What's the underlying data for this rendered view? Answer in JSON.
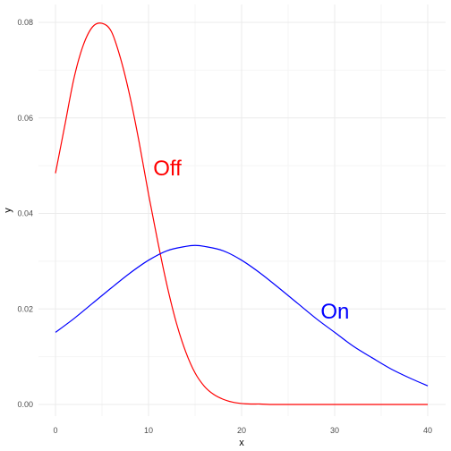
{
  "chart_data": {
    "type": "line",
    "title": "",
    "xlabel": "x",
    "ylabel": "y",
    "xlim": [
      0,
      40
    ],
    "ylim": [
      0,
      0.08
    ],
    "x_ticks": [
      {
        "value": 0,
        "label": "0"
      },
      {
        "value": 10,
        "label": "10"
      },
      {
        "value": 20,
        "label": "20"
      },
      {
        "value": 30,
        "label": "30"
      },
      {
        "value": 40,
        "label": "40"
      }
    ],
    "y_ticks": [
      {
        "value": 0,
        "label": "0.00"
      },
      {
        "value": 0.02,
        "label": "0.02"
      },
      {
        "value": 0.04,
        "label": "0.04"
      },
      {
        "value": 0.06,
        "label": "0.06"
      },
      {
        "value": 0.08,
        "label": "0.08"
      }
    ],
    "grid": true,
    "legend": "none",
    "series": [
      {
        "color": "#ff0000",
        "x": [
          0,
          1,
          2,
          3,
          4,
          5,
          6,
          7,
          8,
          9,
          10,
          11,
          12,
          13,
          14,
          15,
          16,
          17,
          18,
          19,
          20,
          21,
          22,
          23,
          24,
          25,
          26,
          27,
          28,
          29,
          30,
          31,
          32,
          33,
          34,
          35,
          36,
          37,
          38,
          39,
          40
        ],
        "y": [
          0.0484,
          0.0584,
          0.0684,
          0.0753,
          0.0791,
          0.0798,
          0.0781,
          0.0724,
          0.0645,
          0.0548,
          0.044,
          0.034,
          0.0248,
          0.017,
          0.011,
          0.0066,
          0.0038,
          0.0021,
          0.0011,
          0.0005,
          0.0002,
          0.0001,
          0.0001,
          0,
          0,
          0,
          0,
          0,
          0,
          0,
          0,
          0,
          0,
          0,
          0,
          0,
          0,
          0,
          0,
          0,
          0
        ]
      },
      {
        "color": "#0000ff",
        "x": [
          0,
          2,
          4,
          6,
          8,
          10,
          12,
          14,
          15,
          16,
          18,
          20,
          22,
          24,
          26,
          28,
          30,
          32,
          34,
          36,
          38,
          40
        ],
        "y": [
          0.0151,
          0.018,
          0.0212,
          0.0244,
          0.0275,
          0.0302,
          0.0322,
          0.0331,
          0.0333,
          0.0331,
          0.0322,
          0.0302,
          0.0275,
          0.0244,
          0.0212,
          0.018,
          0.0151,
          0.0122,
          0.0098,
          0.0075,
          0.0056,
          0.0039
        ]
      }
    ],
    "annotations": [
      {
        "text": "Off",
        "x": 10.5,
        "y": 0.0495,
        "color": "#ff0000"
      },
      {
        "text": "On",
        "x": 28.5,
        "y": 0.0195,
        "color": "#0000ff"
      }
    ]
  }
}
